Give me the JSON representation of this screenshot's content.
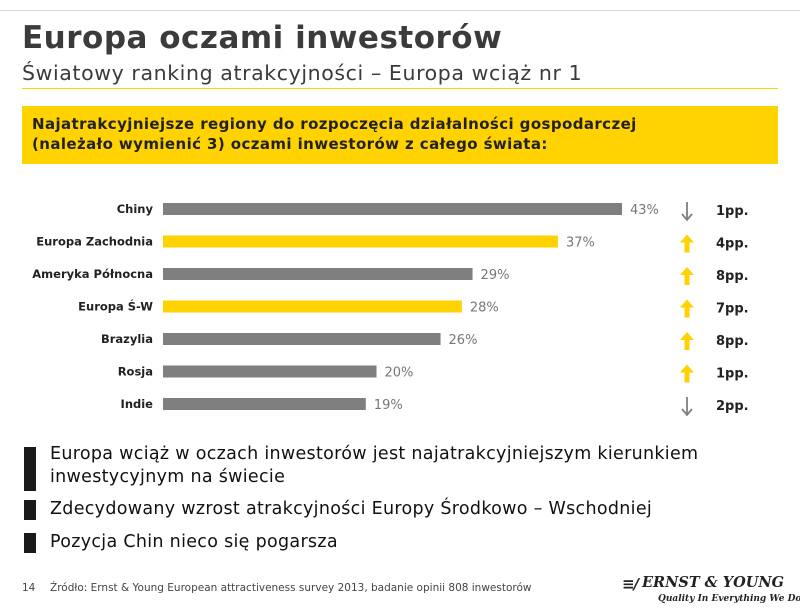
{
  "header": {
    "title": "Europa oczami inwestorów",
    "subtitle": "Światowy ranking atrakcyjności – Europa wciąż nr 1"
  },
  "question": {
    "line1": "Najatrakcyjniejsze regiony do rozpoczęcia działalności gospodarczej",
    "line2": "(należało wymienić 3) oczami inwestorów z całego świata:"
  },
  "colors": {
    "accent": "#ffd200",
    "bar_default": "#7f7f7f",
    "arrow_down": "#808080"
  },
  "chart_data": {
    "type": "bar",
    "orientation": "horizontal",
    "categories": [
      "Chiny",
      "Europa Zachodnia",
      "Ameryka Północna",
      "Europa Ś-W",
      "Brazylia",
      "Rosja",
      "Indie"
    ],
    "values": [
      43,
      37,
      29,
      28,
      26,
      20,
      19
    ],
    "value_labels": [
      "43%",
      "37%",
      "29%",
      "28%",
      "26%",
      "20%",
      "19%"
    ],
    "highlight": [
      false,
      true,
      false,
      true,
      false,
      false,
      false
    ],
    "changes": [
      {
        "direction": "down",
        "label": "1pp."
      },
      {
        "direction": "up",
        "label": "4pp."
      },
      {
        "direction": "up",
        "label": "8pp."
      },
      {
        "direction": "up",
        "label": "7pp."
      },
      {
        "direction": "up",
        "label": "8pp."
      },
      {
        "direction": "up",
        "label": "1pp."
      },
      {
        "direction": "down",
        "label": "2pp."
      }
    ],
    "xlim": [
      0,
      43
    ],
    "grid": false
  },
  "bullets": [
    {
      "lines": [
        "Europa wciąż w oczach inwestorów jest najatrakcyjniejszym kierunkiem",
        "inwestycyjnym na świecie"
      ]
    },
    {
      "lines": [
        "Zdecydowany wzrost atrakcyjności Europy Środkowo – Wschodniej"
      ]
    },
    {
      "lines": [
        "Pozycja Chin nieco się pogarsza"
      ]
    }
  ],
  "footer": {
    "page_number": "14",
    "source": "Źródło: Ernst & Young European attractiveness survey 2013, badanie opinii 808 inwestorów"
  },
  "logo": {
    "name": "ERNST & YOUNG",
    "tagline": "Quality In Everything We Do"
  }
}
